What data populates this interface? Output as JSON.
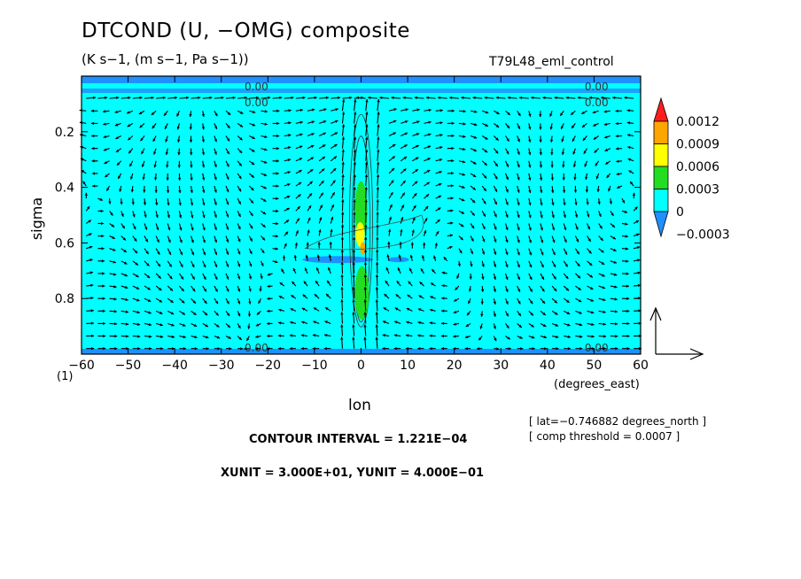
{
  "chart_data": {
    "type": "heatmap",
    "title": "DTCOND (U, −OMG) composite",
    "subtitle": "(K s−1, (m s−1, Pa s−1))",
    "run_label": "T79L48_eml_control",
    "xlabel": "lon",
    "xunit_label": "(degrees_east)",
    "ylabel": "sigma",
    "corner_label": "(1)",
    "xlim": [
      -60,
      60
    ],
    "ylim": [
      1.0,
      0.0
    ],
    "x_ticks": [
      -60,
      -50,
      -40,
      -30,
      -20,
      -10,
      0,
      10,
      20,
      30,
      40,
      50,
      60
    ],
    "x_tick_labels": [
      "−60",
      "−50",
      "−40",
      "−30",
      "−20",
      "−10",
      "0",
      "10",
      "20",
      "30",
      "40",
      "50",
      "60"
    ],
    "y_ticks": [
      0.2,
      0.4,
      0.6,
      0.8
    ],
    "y_tick_labels": [
      "0.2",
      "0.4",
      "0.6",
      "0.8"
    ],
    "colorbar": {
      "labels": [
        "0.0012",
        "0.0009",
        "0.0006",
        "0.0003",
        "0",
        "−0.0003"
      ],
      "levels": [
        0.0012,
        0.0009,
        0.0006,
        0.0003,
        0,
        -0.0003
      ],
      "colors": [
        "#ff1e1e",
        "#ffa500",
        "#ffff00",
        "#22dd22",
        "#00ffff",
        "#1e90ff"
      ]
    },
    "contour_labels": [
      "0.00",
      "0.00",
      "0.00",
      "0.00",
      "0.00",
      "0.00"
    ],
    "contour_interval": "CONTOUR INTERVAL = 1.221E−04",
    "vector_units": "XUNIT = 3.000E+01, YUNIT = 4.000E−01",
    "annotation_lat": "[ lat=−0.746882 degrees_north ]",
    "annotation_threshold": "[ comp threshold = 0.0007 ]",
    "background_color": "#00ffff",
    "negative_color": "#1e90ff",
    "grid": false
  }
}
